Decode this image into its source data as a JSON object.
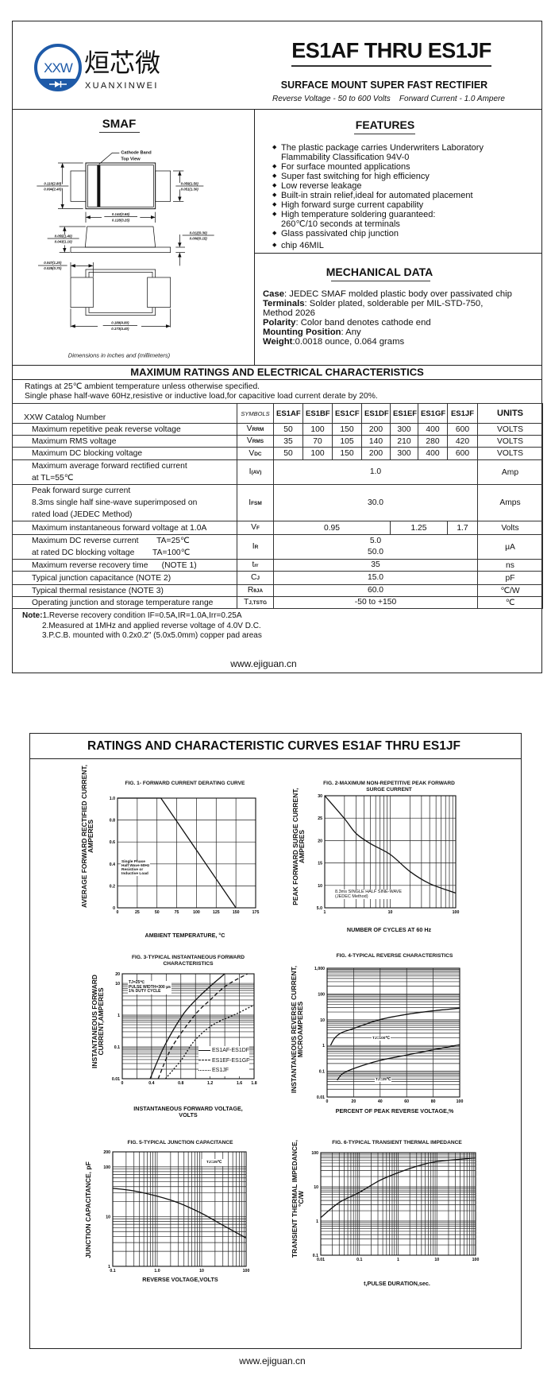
{
  "header": {
    "logo": {
      "mark_letters": "XXW",
      "chinese_name": "烜芯微",
      "latin_name": "XUANXINWEI",
      "brand_color": "#1e5aa8",
      "accent_color": "#3aa845"
    },
    "title": "ES1AF THRU ES1JF",
    "subtitle": "SURFACE MOUNT SUPER FAST RECTIFIER",
    "ratings_line": "Reverse Voltage - 50 to 600 Volts    Forward Current - 1.0 Ampere"
  },
  "package": {
    "title": "SMAF",
    "cathode_label": [
      "Cathode Band",
      "Top View"
    ],
    "dims": {
      "body_height": [
        "0.110(2.80)",
        "0.094(2.40)"
      ],
      "lead_width": [
        "0.059(1.50)",
        "0.051(1.30)"
      ],
      "body_length": [
        "0.144(3.65)",
        "0.128(3.25)"
      ],
      "body_thickness": [
        "0.055(1.40)",
        "0.043(1.10)"
      ],
      "lead_thickness": [
        "0.012(0.30)",
        "0.006(0.15)"
      ],
      "lead_length": [
        "0.047(1.20)",
        "0.028(0.70)"
      ],
      "overall_length": [
        "0.189(4.80)",
        "0.173(4.40)"
      ]
    },
    "note": "Dimensions in inches and (millimeters)"
  },
  "features": {
    "title": "FEATURES",
    "items": [
      [
        "The plastic package carries Underwriters Laboratory",
        "Flammability Classification 94V-0"
      ],
      [
        "For surface mounted applications"
      ],
      [
        "Super fast switching for high efficiency"
      ],
      [
        "Low reverse leakage"
      ],
      [
        "Built-in strain relief,ideal for automated placement"
      ],
      [
        "High forward surge current capability"
      ],
      [
        "High temperature soldering guaranteed:",
        "260℃/10 seconds at terminals"
      ],
      [
        "Glass passivated chip junction"
      ],
      [
        "chip 46MIL"
      ]
    ]
  },
  "mechanical": {
    "title": "MECHANICAL DATA",
    "lines": [
      {
        "label": "Case",
        "text": ": JEDEC SMAF molded plastic body over passivated chip"
      },
      {
        "label": "Terminals",
        "text": ": Solder plated, solderable per MIL-STD-750,"
      },
      {
        "label": "",
        "text": "Method 2026"
      },
      {
        "label": "Polarity",
        "text": ": Color band denotes cathode end"
      },
      {
        "label": "Mounting Position",
        "text": ": Any"
      },
      {
        "label": "Weight",
        "text": ":0.0018 ounce, 0.064 grams"
      }
    ]
  },
  "ratings": {
    "title": "MAXIMUM RATINGS AND ELECTRICAL CHARACTERISTICS",
    "conditions": [
      "Ratings at 25℃ ambient temperature unless otherwise specified.",
      "Single phase half-wave 60Hz,resistive or inductive load,for capacitive load current derate by 20%."
    ],
    "table": {
      "header": {
        "param": "XXW Catalog Number",
        "symbols": "SYMBOLS",
        "parts": [
          "ES1AF",
          "ES1BF",
          "ES1CF",
          "ES1DF",
          "ES1EF",
          "ES1GF",
          "ES1JF"
        ],
        "units": "UNITS"
      },
      "rows": [
        {
          "param": [
            "Maximum repetitive peak reverse voltage"
          ],
          "sym": "V",
          "sub": "RRM",
          "values": [
            "50",
            "100",
            "150",
            "200",
            "300",
            "400",
            "600"
          ],
          "unit": "VOLTS"
        },
        {
          "param": [
            "Maximum RMS voltage"
          ],
          "sym": "V",
          "sub": "RMS",
          "values": [
            "35",
            "70",
            "105",
            "140",
            "210",
            "280",
            "420"
          ],
          "unit": "VOLTS"
        },
        {
          "param": [
            "Maximum DC blocking voltage"
          ],
          "sym": "V",
          "sub": "DC",
          "values": [
            "50",
            "100",
            "150",
            "200",
            "300",
            "400",
            "600"
          ],
          "unit": "VOLTS"
        },
        {
          "param": [
            "Maximum average forward rectified current",
            "at TL=55℃"
          ],
          "sym": "I",
          "sub": "(AV)",
          "value_lines": [
            "1.0"
          ],
          "unit": "Amp"
        },
        {
          "param": [
            "Peak forward surge current",
            "8.3ms single half sine-wave superimposed on",
            "rated load (JEDEC Method)"
          ],
          "sym": "I",
          "sub": "FSM",
          "value_lines": [
            "30.0"
          ],
          "unit": "Amps"
        },
        {
          "param": [
            "Maximum instantaneous forward voltage at 1.0A"
          ],
          "sym": "V",
          "sub": "F",
          "groups": [
            {
              "span": 4,
              "value": "0.95"
            },
            {
              "span": 2,
              "value": "1.25"
            },
            {
              "span": 1,
              "value": "1.7"
            }
          ],
          "unit": "Volts"
        },
        {
          "param": [
            "Maximum DC reverse current        TA=25℃",
            "at rated DC blocking voltage        TA=100℃"
          ],
          "sym": "I",
          "sub": "R",
          "value_lines": [
            "5.0",
            "50.0"
          ],
          "unit": "μA"
        },
        {
          "param": [
            "Maximum reverse recovery time      (NOTE 1)"
          ],
          "sym": "t",
          "sub": "rr",
          "value_lines": [
            "35"
          ],
          "unit": "ns"
        },
        {
          "param": [
            "Typical junction capacitance (NOTE 2)"
          ],
          "sym": "C",
          "sub": "J",
          "value_lines": [
            "15.0"
          ],
          "unit": "pF"
        },
        {
          "param": [
            "Typical thermal resistance (NOTE 3)"
          ],
          "sym": "R",
          "sub": "θJA",
          "value_lines": [
            "60.0"
          ],
          "unit": "℃/W"
        },
        {
          "param": [
            "Operating junction and storage temperature range"
          ],
          "sym": "T",
          "sub": "J,TSTG",
          "value_lines": [
            "-50 to +150"
          ],
          "unit": "℃"
        }
      ]
    },
    "notes": {
      "label": "Note:",
      "items": [
        "1.Reverse recovery condition IF=0.5A,IR=1.0A,Irr=0.25A",
        "2.Measured at 1MHz and applied reverse voltage of 4.0V D.C.",
        "3.P.C.B. mounted with 0.2x0.2\" (5.0x5.0mm) copper pad areas"
      ]
    },
    "website": "www.ejiguan.cn"
  },
  "curves_page": {
    "title": "RATINGS AND CHARACTERISTIC CURVES ES1AF THRU ES1JF",
    "website": "www.ejiguan.cn"
  },
  "chart_data": [
    {
      "type": "line",
      "title_lines": [
        "FIG. 1- FORWARD CURRENT DERATING CURVE"
      ],
      "xlabel_lines": [
        "AMBIENT TEMPERATURE, °C"
      ],
      "ylabel_lines": [
        "AVERAGE FORWARD RECTIFIED CURRENT,",
        "AMPERES"
      ],
      "x_scale": "linear",
      "xlim": [
        0,
        175
      ],
      "x_ticks": [
        0,
        25,
        50,
        75,
        100,
        125,
        150,
        175
      ],
      "x_tick_labels": [
        "0",
        "25",
        "50",
        "75",
        "100",
        "125",
        "150",
        "175"
      ],
      "y_scale": "linear",
      "ylim": [
        0,
        1.0
      ],
      "y_ticks": [
        0,
        0.2,
        0.4,
        0.6,
        0.8,
        1.0
      ],
      "y_tick_labels": [
        "0",
        "0.2",
        "0.4",
        "0.6",
        "0.8",
        "1.0"
      ],
      "grid": true,
      "series": [
        {
          "style": "solid",
          "points": [
            [
              0,
              1.0
            ],
            [
              55,
              1.0
            ],
            [
              150,
              0
            ]
          ]
        }
      ],
      "annotations": [
        [
          "Single Phase",
          "Half Wave 60Hz",
          "Resistive or",
          "Inductive Load"
        ]
      ]
    },
    {
      "type": "line",
      "title_lines": [
        "FIG. 2-MAXIMUM NON-REPETITIVE PEAK FORWARD",
        "SURGE CURRENT"
      ],
      "xlabel_lines": [
        "NUMBER OF CYCLES AT 60 Hz"
      ],
      "ylabel_lines": [
        "PEAK    FORWARD SURGE CURRENT,",
        "AMPERES"
      ],
      "x_scale": "log",
      "xlim": [
        1,
        100
      ],
      "x_ticks": [
        1,
        10,
        100
      ],
      "x_tick_labels": [
        "1",
        "10",
        "100"
      ],
      "y_scale": "linear",
      "ylim": [
        5,
        30
      ],
      "y_ticks": [
        5,
        10,
        15,
        20,
        25,
        30
      ],
      "y_tick_labels": [
        "5.0",
        "10",
        "15",
        "20",
        "25",
        "30"
      ],
      "grid": true,
      "series": [
        {
          "style": "solid",
          "points": [
            [
              1,
              30
            ],
            [
              2,
              24.9
            ],
            [
              3,
              21.6
            ],
            [
              5,
              19.3
            ],
            [
              10,
              16.9
            ],
            [
              20,
              13.1
            ],
            [
              40,
              10.4
            ],
            [
              100,
              8.3
            ]
          ]
        }
      ],
      "annotations": [
        [
          "8.3ms SINGLE HALF SINE-WAVE",
          "(JEDEC Method)"
        ]
      ]
    },
    {
      "type": "line",
      "title_lines": [
        "FIG. 3-TYPICAL INSTANTANEOUS FORWARD",
        "CHARACTERISTICS"
      ],
      "xlabel_lines": [
        "INSTANTANEOUS FORWARD VOLTAGE,",
        "VOLTS"
      ],
      "ylabel_lines": [
        "INSTANTANEOUS FORWARD",
        "CURRENT,AMPERES"
      ],
      "x_scale": "linear",
      "xlim": [
        0,
        1.8
      ],
      "x_ticks": [
        0,
        0.4,
        0.8,
        1.2,
        1.6,
        1.8
      ],
      "x_tick_labels": [
        "0",
        "0.4",
        "0.8",
        "1.2",
        "1.6",
        "1.8"
      ],
      "x_grid": [
        0.2,
        0.4,
        0.6,
        0.8,
        1.0,
        1.2,
        1.4,
        1.6
      ],
      "y_scale": "log",
      "ylim": [
        0.01,
        20
      ],
      "y_ticks": [
        0.01,
        0.1,
        1,
        10,
        20
      ],
      "y_tick_labels": [
        "0.01",
        "0.1",
        "1",
        "10",
        "20"
      ],
      "grid": true,
      "series": [
        {
          "name": "ES1AF-ES1DF",
          "style": "solid",
          "points": [
            [
              0.38,
              0.01
            ],
            [
              0.57,
              0.1
            ],
            [
              0.81,
              0.9
            ],
            [
              0.97,
              2.5
            ],
            [
              1.17,
              7
            ],
            [
              1.4,
              20
            ]
          ]
        },
        {
          "name": "ES1EF-ES1GF",
          "style": "dashed",
          "points": [
            [
              0.49,
              0.01
            ],
            [
              0.68,
              0.1
            ],
            [
              0.99,
              1
            ],
            [
              1.2,
              3
            ],
            [
              1.42,
              8.5
            ],
            [
              1.71,
              20
            ]
          ]
        },
        {
          "name": "ES1JF",
          "style": "dotted",
          "points": [
            [
              0.59,
              0.01
            ],
            [
              0.81,
              0.04
            ],
            [
              0.99,
              0.16
            ],
            [
              1.24,
              0.5
            ],
            [
              1.56,
              1.1
            ],
            [
              1.8,
              2.1
            ]
          ]
        }
      ],
      "annotations": [
        [
          "TJ=25℃",
          "PULSE WIDTH=300 μs",
          "1% DUTY CYCLE"
        ]
      ],
      "legend": "bottom-right"
    },
    {
      "type": "line",
      "title_lines": [
        "FIG. 4-TYPICAL REVERSE CHARACTERISTICS"
      ],
      "xlabel_lines": [
        "PERCENT OF PEAK REVERSE VOLTAGE,%"
      ],
      "ylabel_lines": [
        "INSTANTANEOUS REVERSE CURRENT,",
        "MICROAMPERES"
      ],
      "x_scale": "linear",
      "xlim": [
        0,
        100
      ],
      "x_ticks": [
        0,
        20,
        40,
        60,
        80,
        100
      ],
      "x_tick_labels": [
        "0",
        "20",
        "40",
        "60",
        "80",
        "100"
      ],
      "y_scale": "log",
      "ylim": [
        0.01,
        1000
      ],
      "y_ticks": [
        0.01,
        0.1,
        1,
        10,
        100,
        1000
      ],
      "y_tick_labels": [
        "0.01",
        "0.1",
        "1",
        "10",
        "100",
        "1,000"
      ],
      "grid": true,
      "series": [
        {
          "name": "TJ=100℃",
          "style": "solid",
          "points": [
            [
              2.6,
              1
            ],
            [
              5.6,
              1.9
            ],
            [
              10.6,
              3.1
            ],
            [
              19.6,
              4.5
            ],
            [
              39.5,
              10
            ],
            [
              59.5,
              16
            ],
            [
              79.4,
              22
            ],
            [
              100,
              28
            ]
          ]
        },
        {
          "name": "TJ=25℃",
          "style": "solid",
          "points": [
            [
              7.6,
              0.045
            ],
            [
              11.6,
              0.08
            ],
            [
              20.6,
              0.13
            ],
            [
              39.5,
              0.26
            ],
            [
              59.5,
              0.42
            ],
            [
              79.4,
              0.67
            ],
            [
              100,
              1.07
            ]
          ]
        }
      ]
    },
    {
      "type": "line",
      "title_lines": [
        "FIG. 5-TYPICAL JUNCTION CAPACITANCE"
      ],
      "xlabel_lines": [
        "REVERSE VOLTAGE,VOLTS"
      ],
      "ylabel_lines": [
        "JUNCTION CAPACITANCE, pF"
      ],
      "x_scale": "log",
      "xlim": [
        0.1,
        100
      ],
      "x_ticks": [
        0.1,
        1,
        10,
        100
      ],
      "x_tick_labels": [
        "0.1",
        "1.0",
        "10",
        "100"
      ],
      "y_scale": "log",
      "ylim": [
        1,
        200
      ],
      "y_ticks": [
        1,
        10,
        100,
        200
      ],
      "y_tick_labels": [
        "1",
        "10",
        "100",
        "200"
      ],
      "grid": true,
      "series": [
        {
          "style": "solid",
          "points": [
            [
              0.1,
              37
            ],
            [
              0.29,
              33
            ],
            [
              1,
              25.7
            ],
            [
              3,
              18.9
            ],
            [
              10,
              11.6
            ],
            [
              30,
              6.7
            ],
            [
              100,
              3.7
            ]
          ]
        }
      ],
      "annotations": [
        [
          "TJ=25℃"
        ]
      ]
    },
    {
      "type": "line",
      "title_lines": [
        "FIG. 6-TYPICAL TRANSIENT THERMAL IMPEDANCE"
      ],
      "xlabel_lines": [
        "t,PULSE DURATION,sec."
      ],
      "ylabel_lines": [
        "TRANSIENT THERMAL IMPEDANCE,",
        "°C/W"
      ],
      "x_scale": "log",
      "xlim": [
        0.01,
        100
      ],
      "x_ticks": [
        0.01,
        0.1,
        1,
        10,
        100
      ],
      "x_tick_labels": [
        "0.01",
        "0.1",
        "1",
        "10",
        "100"
      ],
      "y_scale": "log",
      "ylim": [
        0.1,
        100
      ],
      "y_ticks": [
        0.1,
        1,
        10,
        100
      ],
      "y_tick_labels": [
        "0.1",
        "1",
        "10",
        "100"
      ],
      "grid": true,
      "series": [
        {
          "style": "solid",
          "points": [
            [
              0.01,
              1.26
            ],
            [
              0.029,
              3.4
            ],
            [
              0.1,
              6.9
            ],
            [
              0.33,
              15.3
            ],
            [
              1,
              26
            ],
            [
              3.3,
              41
            ],
            [
              10,
              55
            ],
            [
              100,
              70
            ]
          ]
        }
      ]
    }
  ]
}
